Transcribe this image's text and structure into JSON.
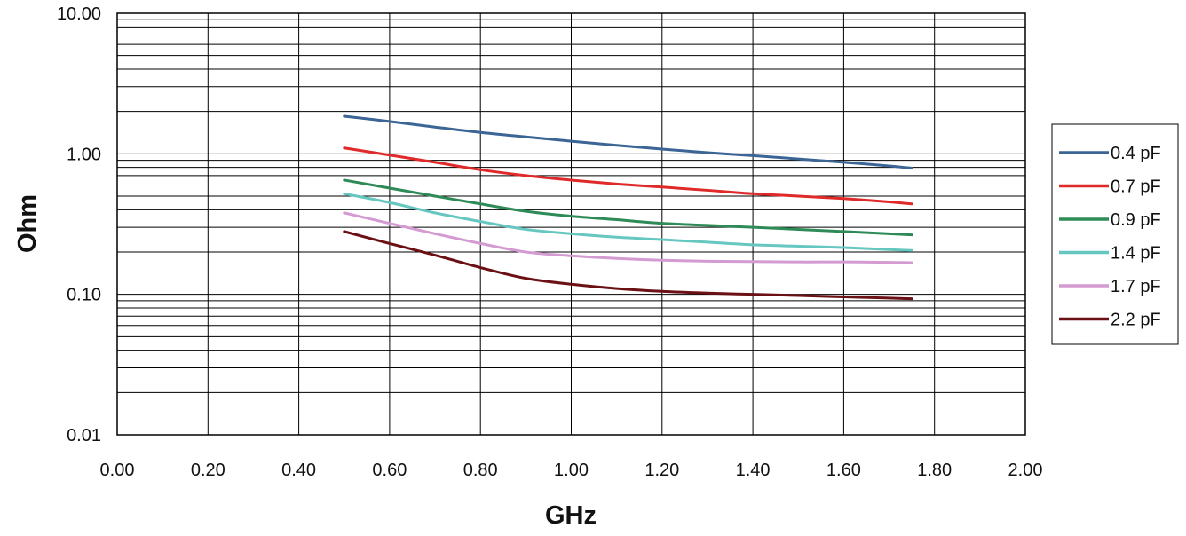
{
  "chart_data": {
    "type": "line",
    "title": "",
    "xlabel": "GHz",
    "ylabel": "Ohm",
    "xlim": [
      0,
      2
    ],
    "ylim": [
      0.01,
      10
    ],
    "yscale": "log",
    "grid": true,
    "legend_position": "right",
    "x_ticks": [
      "0.00",
      "0.20",
      "0.40",
      "0.60",
      "0.80",
      "1.00",
      "1.20",
      "1.40",
      "1.60",
      "1.80",
      "2.00"
    ],
    "y_ticks": [
      "0.01",
      "0.10",
      "1.00",
      "10.00"
    ],
    "x": [
      0.5,
      0.6,
      0.7,
      0.8,
      0.9,
      1.0,
      1.1,
      1.2,
      1.3,
      1.4,
      1.5,
      1.6,
      1.7,
      1.75
    ],
    "series": [
      {
        "name": "0.4 pF",
        "color": "#3b6595",
        "values": [
          1.85,
          1.7,
          1.55,
          1.42,
          1.32,
          1.23,
          1.15,
          1.08,
          1.02,
          0.97,
          0.92,
          0.87,
          0.82,
          0.79
        ]
      },
      {
        "name": "0.7 pF",
        "color": "#e02a2a",
        "values": [
          1.1,
          0.98,
          0.87,
          0.77,
          0.7,
          0.65,
          0.61,
          0.58,
          0.55,
          0.52,
          0.5,
          0.48,
          0.455,
          0.44
        ]
      },
      {
        "name": "0.9 pF",
        "color": "#2e8b57",
        "values": [
          0.65,
          0.57,
          0.5,
          0.44,
          0.39,
          0.36,
          0.34,
          0.32,
          0.31,
          0.3,
          0.29,
          0.28,
          0.27,
          0.265
        ]
      },
      {
        "name": "1.4 pF",
        "color": "#66c6c0",
        "values": [
          0.52,
          0.45,
          0.38,
          0.33,
          0.29,
          0.27,
          0.255,
          0.245,
          0.235,
          0.225,
          0.22,
          0.215,
          0.208,
          0.205
        ]
      },
      {
        "name": "1.7 pF",
        "color": "#d39bd1",
        "values": [
          0.38,
          0.32,
          0.27,
          0.23,
          0.2,
          0.188,
          0.18,
          0.175,
          0.172,
          0.171,
          0.17,
          0.17,
          0.169,
          0.168
        ]
      },
      {
        "name": "2.2 pF",
        "color": "#6b1014",
        "values": [
          0.28,
          0.23,
          0.19,
          0.155,
          0.13,
          0.118,
          0.11,
          0.105,
          0.102,
          0.1,
          0.098,
          0.096,
          0.094,
          0.093
        ]
      }
    ]
  }
}
